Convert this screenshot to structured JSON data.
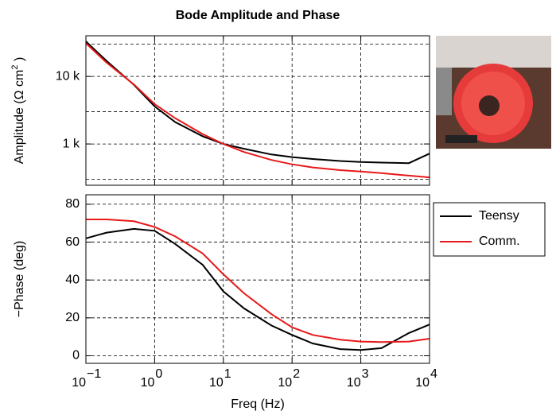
{
  "chart_data": [
    {
      "type": "line",
      "title": "Bode Amplitude and Phase",
      "log_x": true,
      "log_y": true,
      "grid": true,
      "ylabel": {
        "text": "Amplitude  (Ω cm",
        "superscript": "2",
        "suffix": " )"
      },
      "x": [
        0.1,
        0.2,
        0.5,
        1,
        2,
        5,
        10,
        20,
        50,
        100,
        200,
        500,
        1000,
        2000,
        5000,
        10000
      ],
      "series": [
        {
          "name": "Teensy",
          "color": "#000000",
          "values": [
            33000,
            17000,
            7500,
            3600,
            2100,
            1300,
            1000,
            850,
            700,
            640,
            600,
            560,
            540,
            530,
            520,
            720
          ]
        },
        {
          "name": "Comm.",
          "color": "#e8191a",
          "values": [
            31000,
            16000,
            7600,
            3900,
            2400,
            1400,
            1000,
            760,
            580,
            500,
            450,
            410,
            390,
            370,
            340,
            320
          ]
        }
      ],
      "xlim": [
        0.1,
        10000
      ],
      "xticks": [
        0.1,
        1,
        10,
        100,
        1000,
        10000
      ],
      "ylim": [
        245,
        40000
      ],
      "yticks": [
        {
          "value": 1000,
          "label": "1 k"
        },
        {
          "value": 10000,
          "label": "10 k"
        }
      ],
      "ygrid_minor": [
        300,
        3000,
        30000
      ]
    },
    {
      "type": "line",
      "log_x": true,
      "grid": true,
      "ylabel": "−Phase (deg)",
      "xlabel": "Freq (Hz)",
      "legend": "outside-right",
      "x": [
        0.1,
        0.2,
        0.5,
        1,
        2,
        5,
        10,
        20,
        50,
        100,
        200,
        500,
        1000,
        2000,
        5000,
        10000
      ],
      "series": [
        {
          "name": "Teensy",
          "color": "#000000",
          "values": [
            62,
            65,
            67,
            66,
            59,
            48,
            34,
            25,
            16,
            11,
            6.5,
            3.5,
            3,
            4,
            12,
            16.5
          ]
        },
        {
          "name": "Comm.",
          "color": "#e8191a",
          "values": [
            72,
            72,
            71,
            68,
            63,
            54,
            43,
            33,
            22,
            15,
            11,
            8.5,
            7.5,
            7.2,
            7.5,
            9
          ]
        }
      ],
      "xlim": [
        0.1,
        10000
      ],
      "xticks": [
        {
          "value": 0.1,
          "base": "10",
          "exponent": "−1"
        },
        {
          "value": 1,
          "base": "10",
          "exponent": "0"
        },
        {
          "value": 10,
          "base": "10",
          "exponent": "1"
        },
        {
          "value": 100,
          "base": "10",
          "exponent": "2"
        },
        {
          "value": 1000,
          "base": "10",
          "exponent": "3"
        },
        {
          "value": 10000,
          "base": "10",
          "exponent": "4"
        }
      ],
      "ylim": [
        -4,
        85
      ],
      "yticks": [
        0,
        20,
        40,
        60,
        80
      ]
    }
  ]
}
